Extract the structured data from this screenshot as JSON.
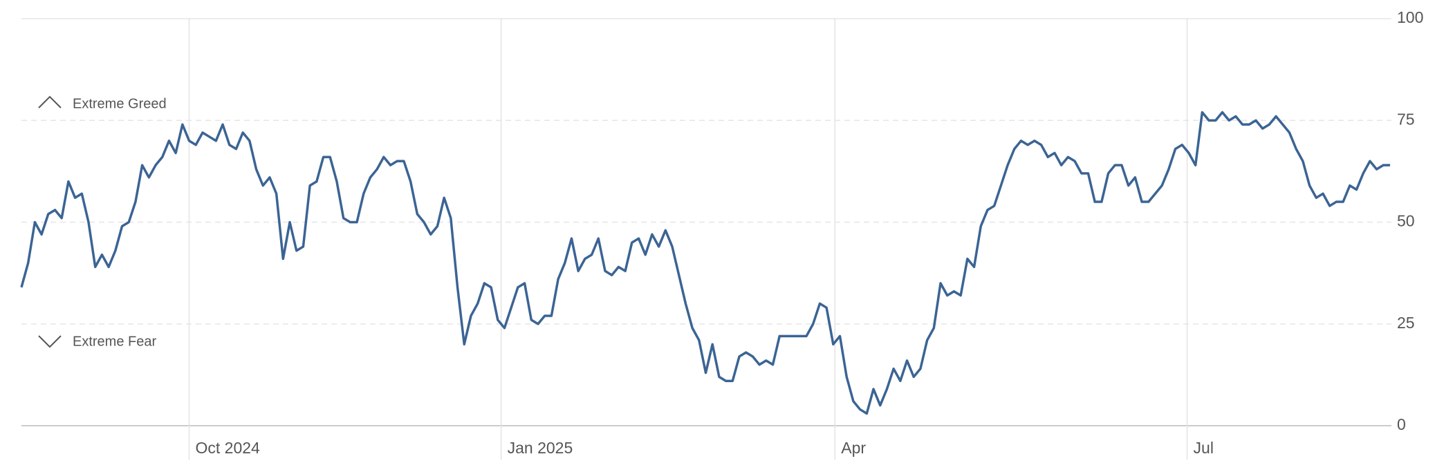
{
  "chart_data": {
    "type": "line",
    "annotations": [
      "Extreme Greed",
      "Extreme Fear"
    ],
    "series": [
      {
        "color": "#3b6494",
        "values": [
          34,
          40,
          50,
          47,
          52,
          53,
          51,
          60,
          56,
          57,
          50,
          39,
          42,
          39,
          43,
          49,
          50,
          55,
          64,
          61,
          64,
          66,
          70,
          67,
          74,
          70,
          69,
          72,
          71,
          70,
          74,
          69,
          68,
          72,
          70,
          63,
          59,
          61,
          57,
          41,
          50,
          43,
          44,
          59,
          60,
          66,
          66,
          60,
          51,
          50,
          50,
          57,
          61,
          63,
          66,
          64,
          65,
          65,
          60,
          52,
          50,
          47,
          49,
          56,
          51,
          34,
          20,
          27,
          30,
          35,
          34,
          26,
          24,
          29,
          34,
          35,
          26,
          25,
          27,
          27,
          36,
          40,
          46,
          38,
          41,
          42,
          46,
          38,
          37,
          39,
          38,
          45,
          46,
          42,
          47,
          44,
          48,
          44,
          37,
          30,
          24,
          21,
          13,
          20,
          12,
          11,
          11,
          17,
          18,
          17,
          15,
          16,
          15,
          22,
          22,
          22,
          22,
          22,
          25,
          30,
          29,
          20,
          22,
          12,
          6,
          4,
          3,
          9,
          5,
          9,
          14,
          11,
          16,
          12,
          14,
          21,
          24,
          35,
          32,
          33,
          32,
          41,
          39,
          49,
          53,
          54,
          59,
          64,
          68,
          70,
          69,
          70,
          69,
          66,
          67,
          64,
          66,
          65,
          62,
          62,
          55,
          55,
          62,
          64,
          64,
          59,
          61,
          55,
          55,
          57,
          59,
          63,
          68,
          69,
          67,
          64,
          77,
          75,
          75,
          77,
          75,
          76,
          74,
          74,
          75,
          73,
          74,
          76,
          74,
          72,
          68,
          65,
          59,
          56,
          57,
          54,
          55,
          55,
          59,
          58,
          62,
          65,
          63,
          64,
          64
        ]
      }
    ],
    "xlim": [
      0,
      204
    ],
    "xticks": [
      {
        "value": 25,
        "label": "Oct 2024"
      },
      {
        "value": 71.5,
        "label": "Jan 2025"
      },
      {
        "value": 121.25,
        "label": "Apr"
      },
      {
        "value": 173.75,
        "label": "Jul"
      }
    ],
    "ylim": [
      0,
      100
    ],
    "yticks": [
      0,
      25,
      50,
      75,
      100
    ],
    "grid": true
  }
}
